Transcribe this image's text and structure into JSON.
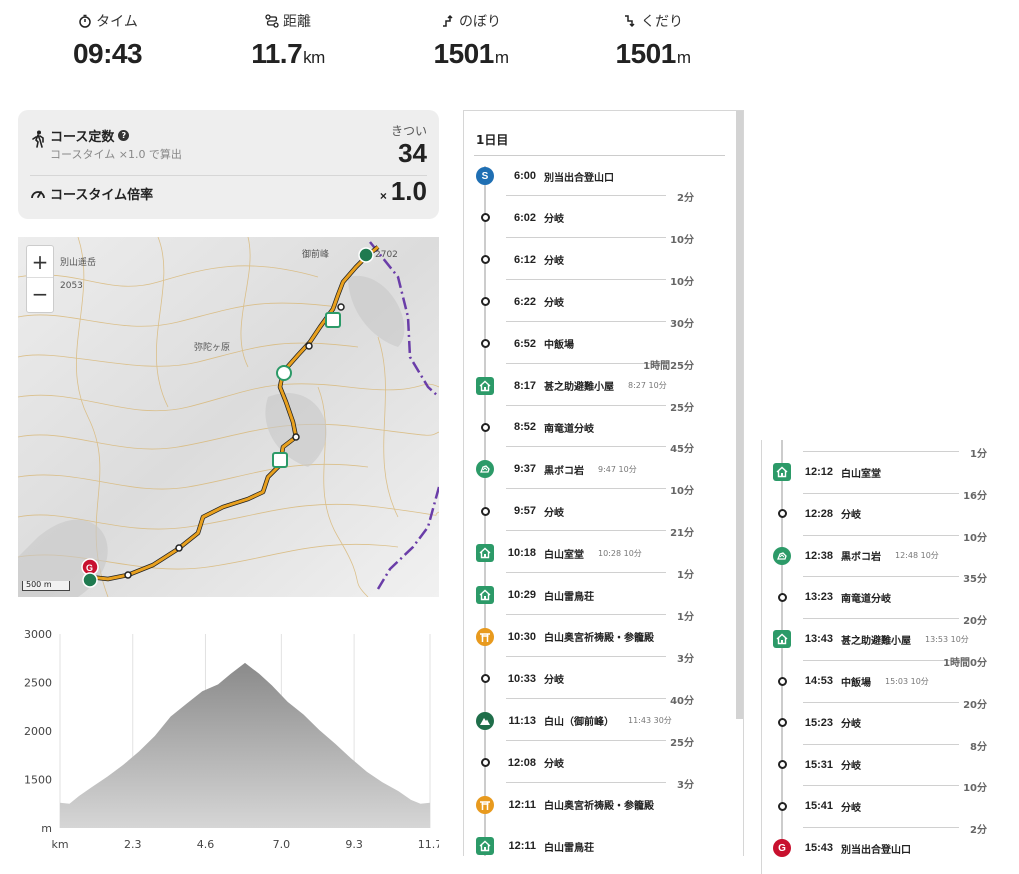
{
  "stats": [
    {
      "label": "タイム",
      "value": "09:43",
      "unit": "",
      "icon": "stopwatch-icon"
    },
    {
      "label": "距離",
      "value": "11.7",
      "unit": "km",
      "icon": "route-icon"
    },
    {
      "label": "のぼり",
      "value": "1501",
      "unit": "m",
      "icon": "ascent-icon"
    },
    {
      "label": "くだり",
      "value": "1501",
      "unit": "m",
      "icon": "descent-icon"
    }
  ],
  "course": {
    "title": "コース定数",
    "sub": "コースタイム ×1.0 で算出",
    "difficulty": "きつい",
    "value": "34",
    "ratio_title": "コースタイム倍率",
    "ratio_x": "×",
    "ratio": "1.0"
  },
  "map": {
    "zoom_in": "+",
    "zoom_out": "−",
    "scale": "500 m",
    "labels": [
      "御前峰",
      "弥陀ヶ原",
      "2702",
      "2053",
      "別山遥岳"
    ],
    "route_color": "#e8a01e"
  },
  "chart_data": {
    "type": "area",
    "title": "",
    "xlabel": "km",
    "ylabel": "m",
    "x_ticks": [
      "2.3",
      "4.6",
      "7.0",
      "9.3",
      "11.7"
    ],
    "y_ticks": [
      "3000",
      "2500",
      "2000",
      "1500"
    ],
    "ylim": [
      1000,
      3000
    ],
    "xlim": [
      0,
      11.7
    ],
    "x": [
      0,
      0.3,
      0.6,
      1.0,
      1.5,
      2.0,
      2.5,
      3.0,
      3.5,
      4.0,
      4.5,
      5.0,
      5.4,
      5.85,
      6.3,
      6.7,
      7.2,
      7.7,
      8.2,
      8.7,
      9.2,
      9.7,
      10.2,
      10.7,
      11.1,
      11.4,
      11.7
    ],
    "values": [
      1260,
      1250,
      1330,
      1420,
      1530,
      1650,
      1790,
      1950,
      2150,
      2280,
      2410,
      2480,
      2590,
      2702,
      2590,
      2470,
      2300,
      2170,
      2010,
      1870,
      1720,
      1580,
      1470,
      1380,
      1290,
      1250,
      1260
    ],
    "fill_color": "#9e9e9e"
  },
  "timeline": {
    "day_label": "1日目",
    "events": [
      {
        "time": "6:00",
        "name": "別当出合登山口",
        "extra": "",
        "icon": "start",
        "badge": "S"
      },
      {
        "time": "6:02",
        "name": "分岐",
        "extra": "",
        "icon": "point"
      },
      {
        "time": "6:12",
        "name": "分岐",
        "extra": "",
        "icon": "point"
      },
      {
        "time": "6:22",
        "name": "分岐",
        "extra": "",
        "icon": "point"
      },
      {
        "time": "6:52",
        "name": "中飯場",
        "extra": "",
        "icon": "point"
      },
      {
        "time": "8:17",
        "name": "甚之助避難小屋",
        "extra": "8:27 10分",
        "icon": "hut"
      },
      {
        "time": "8:52",
        "name": "南竜道分岐",
        "extra": "",
        "icon": "point"
      },
      {
        "time": "9:37",
        "name": "黒ボコ岩",
        "extra": "9:47 10分",
        "icon": "rock"
      },
      {
        "time": "9:57",
        "name": "分岐",
        "extra": "",
        "icon": "point"
      },
      {
        "time": "10:18",
        "name": "白山室堂",
        "extra": "10:28 10分",
        "icon": "hut"
      },
      {
        "time": "10:29",
        "name": "白山雷鳥荘",
        "extra": "",
        "icon": "hut"
      },
      {
        "time": "10:30",
        "name": "白山奥宮祈祷殿・参籠殿",
        "extra": "",
        "icon": "shrine"
      },
      {
        "time": "10:33",
        "name": "分岐",
        "extra": "",
        "icon": "point"
      },
      {
        "time": "11:13",
        "name": "白山（御前峰）",
        "extra": "11:43 30分",
        "icon": "summit"
      },
      {
        "time": "12:08",
        "name": "分岐",
        "extra": "",
        "icon": "point"
      },
      {
        "time": "12:11",
        "name": "白山奥宮祈祷殿・参籠殿",
        "extra": "",
        "icon": "shrine"
      },
      {
        "time": "12:11",
        "name": "白山雷鳥荘",
        "extra": "",
        "icon": "hut"
      }
    ],
    "legs": [
      "2分",
      "10分",
      "10分",
      "30分",
      "1時間25分",
      "25分",
      "45分",
      "10分",
      "21分",
      "1分",
      "1分",
      "3分",
      "40分",
      "25分",
      "3分"
    ],
    "side_events": [
      {
        "time": "12:12",
        "name": "白山室堂",
        "extra": "",
        "icon": "hut"
      },
      {
        "time": "12:28",
        "name": "分岐",
        "extra": "",
        "icon": "point"
      },
      {
        "time": "12:38",
        "name": "黒ボコ岩",
        "extra": "12:48 10分",
        "icon": "rock"
      },
      {
        "time": "13:23",
        "name": "南竜道分岐",
        "extra": "",
        "icon": "point"
      },
      {
        "time": "13:43",
        "name": "甚之助避難小屋",
        "extra": "13:53 10分",
        "icon": "hut"
      },
      {
        "time": "14:53",
        "name": "中飯場",
        "extra": "15:03 10分",
        "icon": "point"
      },
      {
        "time": "15:23",
        "name": "分岐",
        "extra": "",
        "icon": "point"
      },
      {
        "time": "15:31",
        "name": "分岐",
        "extra": "",
        "icon": "point"
      },
      {
        "time": "15:41",
        "name": "分岐",
        "extra": "",
        "icon": "point"
      },
      {
        "time": "15:43",
        "name": "別当出合登山口",
        "extra": "",
        "icon": "goal",
        "badge": "G"
      }
    ],
    "side_legs": [
      "1分",
      "16分",
      "10分",
      "35分",
      "20分",
      "1時間0分",
      "20分",
      "8分",
      "10分",
      "2分"
    ]
  }
}
